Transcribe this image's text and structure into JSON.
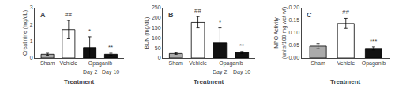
{
  "chart_data": [
    {
      "type": "bar",
      "title": "A",
      "ylabel": "Creatinine (mg/dL)",
      "xlabel": "Treatment",
      "categories": [
        "Sham",
        "Vehicle",
        "Day 2",
        "Day 10"
      ],
      "category_groups": [
        {
          "label": "Opaganib",
          "categories": [
            "Day 2",
            "Day 10"
          ]
        }
      ],
      "values": [
        0.22,
        1.7,
        0.62,
        0.22
      ],
      "errors": [
        0.06,
        0.55,
        0.65,
        0.06
      ],
      "colors": [
        "#aaaaaa",
        "#ffffff",
        "#111111",
        "#111111"
      ],
      "annotations": [
        null,
        "##",
        "*",
        "**"
      ],
      "ylim": [
        0,
        3.0
      ],
      "yticks": [
        0,
        1,
        2,
        3
      ],
      "grid": false
    },
    {
      "type": "bar",
      "title": "B",
      "ylabel": "BUN (mg/dL)",
      "xlabel": "Treatment",
      "categories": [
        "Sham",
        "Vehicle",
        "Day 2",
        "Day 10"
      ],
      "category_groups": [
        {
          "label": "Opaganib",
          "categories": [
            "Day 2",
            "Day 10"
          ]
        }
      ],
      "values": [
        22,
        178,
        75,
        27
      ],
      "errors": [
        4,
        28,
        75,
        5
      ],
      "colors": [
        "#aaaaaa",
        "#ffffff",
        "#111111",
        "#111111"
      ],
      "annotations": [
        null,
        "##",
        "*",
        "**"
      ],
      "ylim": [
        0,
        250
      ],
      "yticks": [
        0,
        50,
        100,
        150,
        200,
        250
      ],
      "grid": false
    },
    {
      "type": "bar",
      "title": "C",
      "ylabel": "MPO Activity\n(units/100 mg wet wt)",
      "xlabel": "Treatment",
      "categories": [
        "Sham",
        "Vehicle",
        "Opaganib"
      ],
      "values": [
        0.047,
        0.138,
        0.038
      ],
      "errors": [
        0.01,
        0.02,
        0.006
      ],
      "colors": [
        "#aaaaaa",
        "#ffffff",
        "#111111"
      ],
      "annotations": [
        null,
        "##",
        "***"
      ],
      "ylim": [
        0,
        0.2
      ],
      "yticks": [
        {
          "value": 0.0,
          "label": "0.00"
        },
        0.05,
        {
          "value": 0.1,
          "label": "0.10"
        },
        0.15,
        {
          "value": 0.2,
          "label": "0.20"
        }
      ],
      "grid": false
    }
  ]
}
